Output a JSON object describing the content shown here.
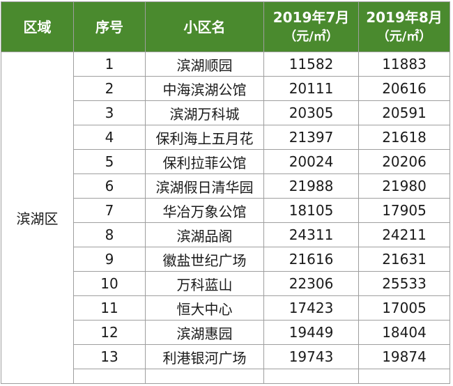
{
  "table": {
    "headers": {
      "region": "区域",
      "index": "序号",
      "name": "小区名",
      "jul_line1": "2019年7月",
      "jul_line2": "（元/㎡）",
      "aug_line1": "2019年8月",
      "aug_line2": "（元/㎡）"
    },
    "region_name": "滨湖区",
    "rows": [
      {
        "index": "1",
        "name": "滨湖顺园",
        "jul": "11582",
        "aug": "11883"
      },
      {
        "index": "2",
        "name": "中海滨湖公馆",
        "jul": "20111",
        "aug": "20616"
      },
      {
        "index": "3",
        "name": "滨湖万科城",
        "jul": "20305",
        "aug": "20591"
      },
      {
        "index": "4",
        "name": "保利海上五月花",
        "jul": "21397",
        "aug": "21618"
      },
      {
        "index": "5",
        "name": "保利拉菲公馆",
        "jul": "20024",
        "aug": "20206"
      },
      {
        "index": "6",
        "name": "滨湖假日清华园",
        "jul": "21988",
        "aug": "21980"
      },
      {
        "index": "7",
        "name": "华冶万象公馆",
        "jul": "18105",
        "aug": "17905"
      },
      {
        "index": "8",
        "name": "滨湖品阁",
        "jul": "24311",
        "aug": "24211"
      },
      {
        "index": "9",
        "name": "徽盐世纪广场",
        "jul": "21616",
        "aug": "21631"
      },
      {
        "index": "10",
        "name": "万科蓝山",
        "jul": "22306",
        "aug": "25533"
      },
      {
        "index": "11",
        "name": "恒大中心",
        "jul": "17423",
        "aug": "17005"
      },
      {
        "index": "12",
        "name": "滨湖惠园",
        "jul": "19449",
        "aug": "18404"
      },
      {
        "index": "13",
        "name": "利港银河广场",
        "jul": "19743",
        "aug": "19874"
      }
    ]
  },
  "colors": {
    "header_bg": "#4a8a2e",
    "header_text": "#ffffff",
    "border": "#9e9e9e"
  }
}
